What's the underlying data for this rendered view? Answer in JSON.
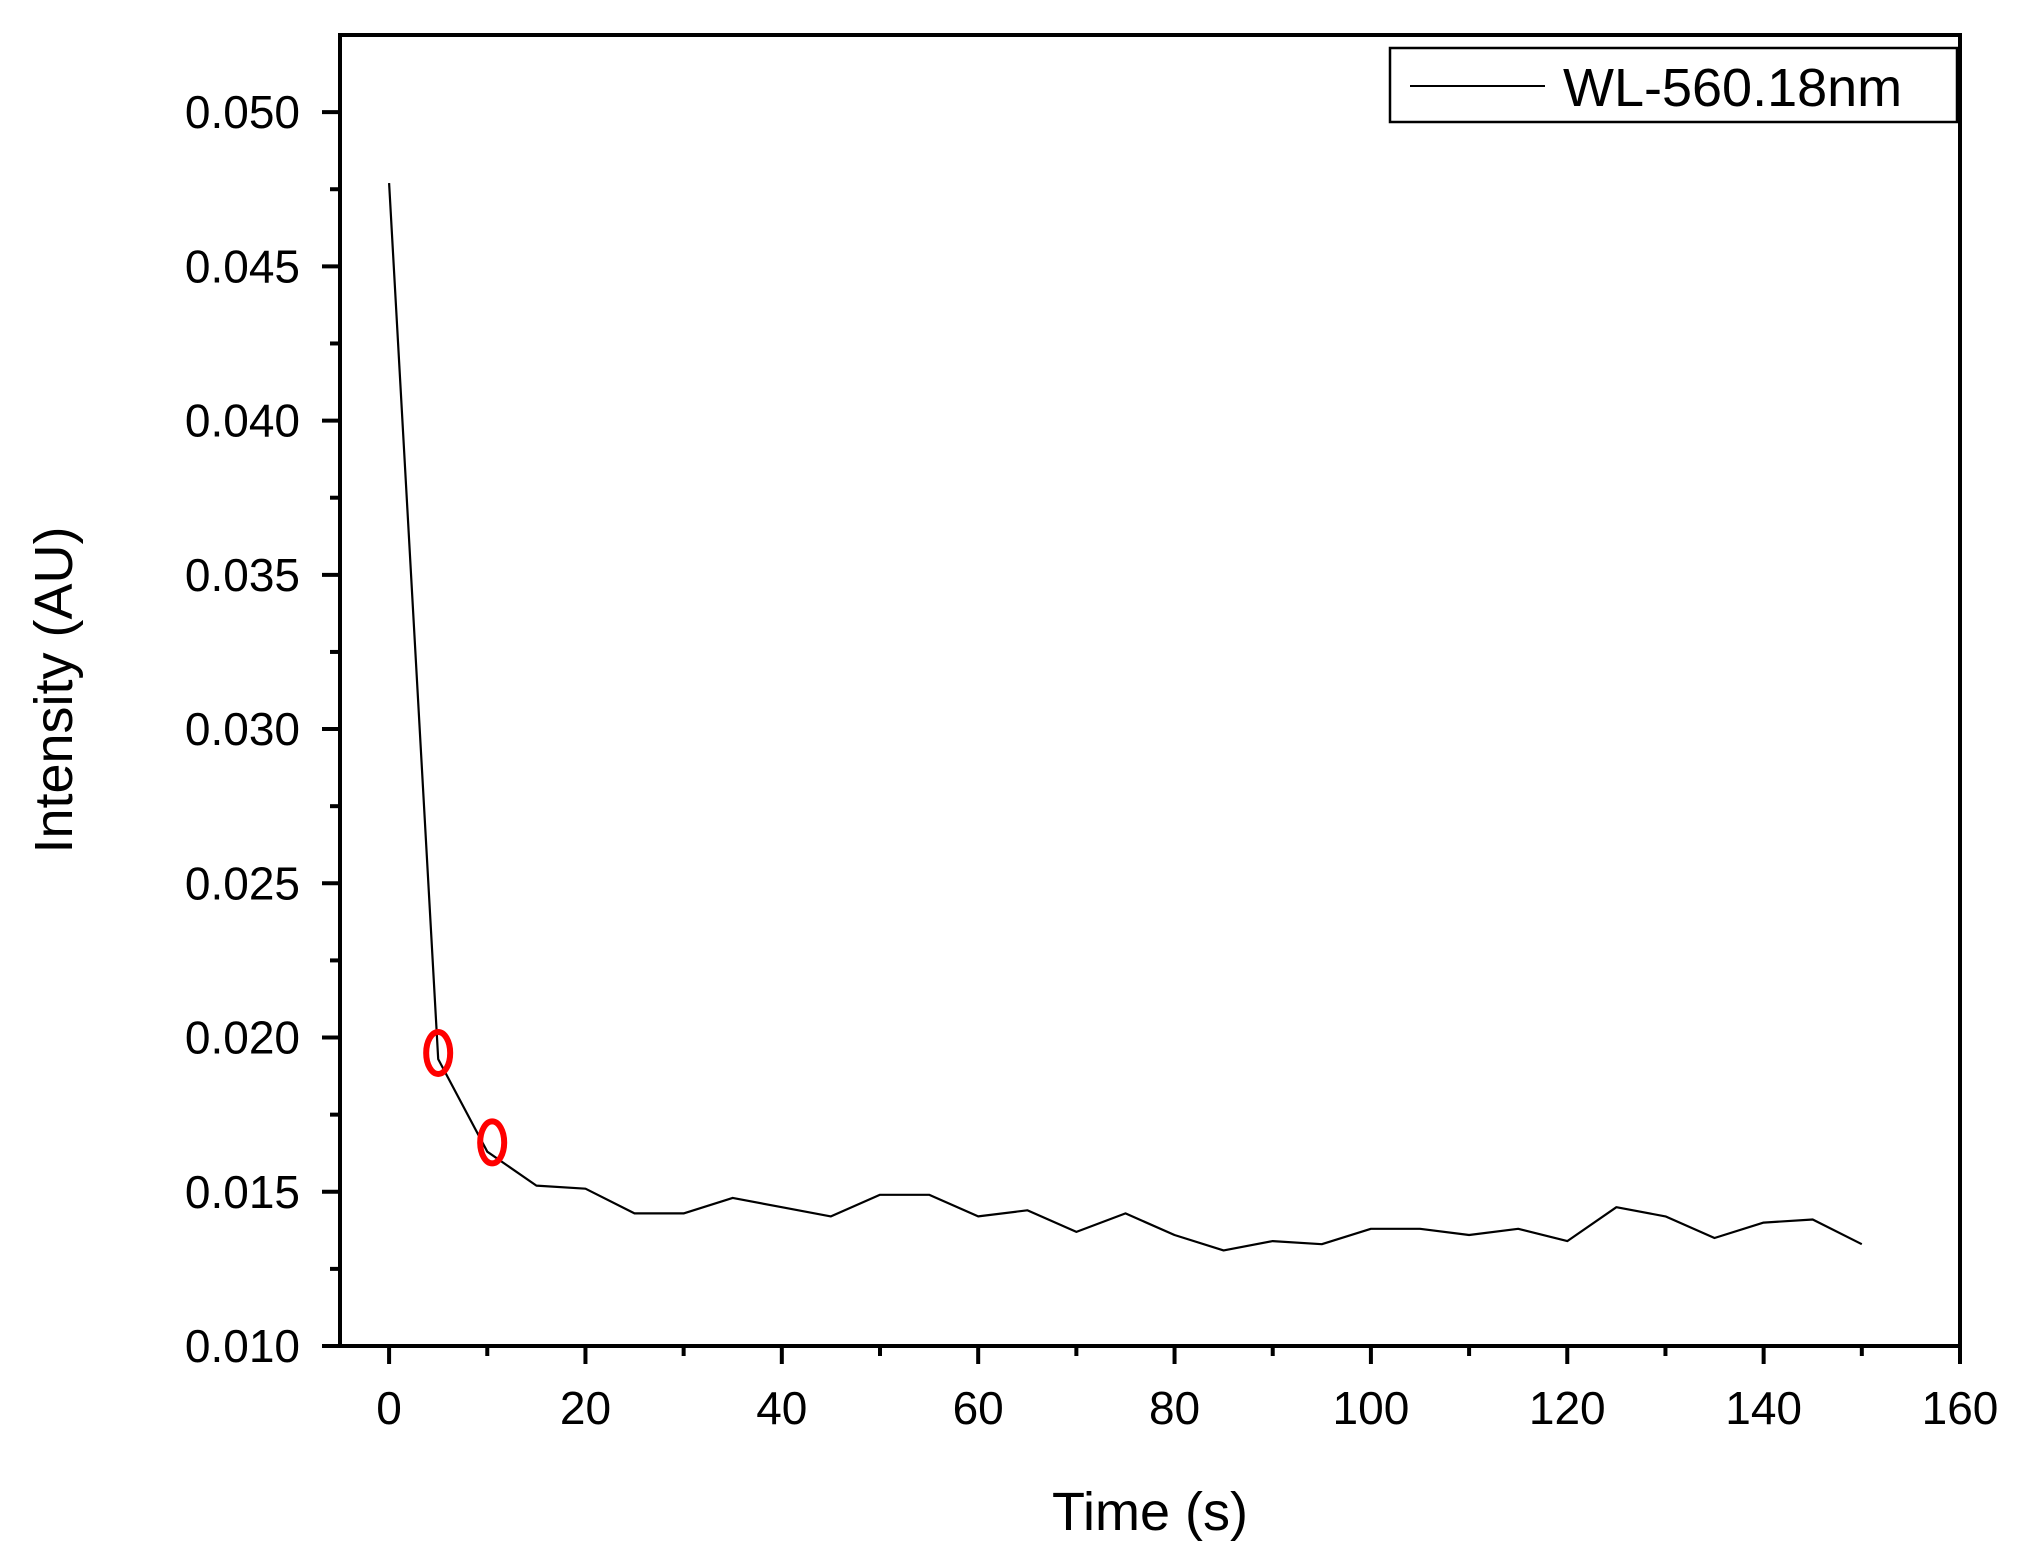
{
  "chart_data": {
    "type": "line",
    "xlabel": "Time (s)",
    "ylabel": "Intensity (AU)",
    "xlim": [
      -5,
      160
    ],
    "ylim": [
      0.01,
      0.0525
    ],
    "xticks": [
      0,
      20,
      40,
      60,
      80,
      100,
      120,
      140,
      160
    ],
    "xtick_labels": [
      "0",
      "20",
      "40",
      "60",
      "80",
      "100",
      "120",
      "140",
      "160"
    ],
    "yticks": [
      0.01,
      0.015,
      0.02,
      0.025,
      0.03,
      0.035,
      0.04,
      0.045,
      0.05
    ],
    "ytick_labels": [
      "0.010",
      "0.015",
      "0.020",
      "0.025",
      "0.030",
      "0.035",
      "0.040",
      "0.045",
      "0.050"
    ],
    "grid": false,
    "legend_position": "top-right",
    "series": [
      {
        "name": "WL-560.18nm",
        "color": "#000000",
        "x": [
          0,
          5,
          10,
          15,
          20,
          25,
          30,
          35,
          40,
          45,
          50,
          55,
          60,
          65,
          70,
          75,
          80,
          85,
          90,
          95,
          100,
          105,
          110,
          115,
          120,
          125,
          130,
          135,
          140,
          145,
          150
        ],
        "y": [
          0.0477,
          0.0193,
          0.0163,
          0.0152,
          0.0151,
          0.0143,
          0.0143,
          0.0148,
          0.0145,
          0.0142,
          0.0149,
          0.0149,
          0.0142,
          0.0144,
          0.0137,
          0.0143,
          0.0136,
          0.0131,
          0.0134,
          0.0133,
          0.0138,
          0.0138,
          0.0136,
          0.0138,
          0.0134,
          0.0145,
          0.0142,
          0.0135,
          0.014,
          0.0141,
          0.0133
        ]
      }
    ],
    "annotations": [
      {
        "shape": "ellipse",
        "color": "#ff0000",
        "x": 5,
        "y": 0.0195
      },
      {
        "shape": "ellipse",
        "color": "#ff0000",
        "x": 10.5,
        "y": 0.0166
      }
    ]
  }
}
